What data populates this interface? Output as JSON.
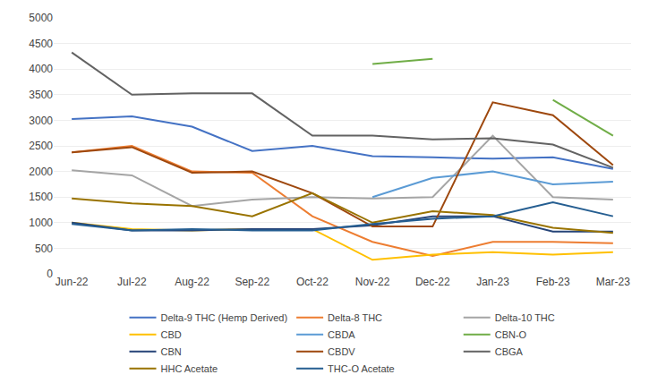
{
  "chart_data": {
    "type": "line",
    "categories": [
      "Jun-22",
      "Jul-22",
      "Aug-22",
      "Sep-22",
      "Oct-22",
      "Nov-22",
      "Dec-22",
      "Jan-23",
      "Feb-23",
      "Mar-23"
    ],
    "series": [
      {
        "name": "Delta-9 THC (Hemp Derived)",
        "color": "#4472C4",
        "values": [
          3025,
          3075,
          2875,
          2400,
          2500,
          2300,
          2275,
          2250,
          2275,
          2050
        ]
      },
      {
        "name": "Delta-8 THC",
        "color": "#ED7D31",
        "values": [
          2375,
          2500,
          2000,
          1975,
          1125,
          625,
          350,
          625,
          625,
          600
        ]
      },
      {
        "name": "Delta-10 THC",
        "color": "#A5A5A5",
        "values": [
          2025,
          1925,
          1325,
          1450,
          1500,
          1475,
          1500,
          2700,
          1500,
          1450
        ]
      },
      {
        "name": "CBD",
        "color": "#FFC000",
        "values": [
          1000,
          875,
          850,
          875,
          875,
          275,
          375,
          425,
          375,
          425
        ]
      },
      {
        "name": "CBDA",
        "color": "#5B9BD5",
        "values": [
          null,
          null,
          null,
          null,
          null,
          1500,
          1875,
          2000,
          1750,
          1800
        ]
      },
      {
        "name": "CBN-O",
        "color": "#70AD47",
        "values": [
          null,
          null,
          null,
          null,
          null,
          4100,
          4200,
          null,
          3400,
          2700
        ]
      },
      {
        "name": "CBN",
        "color": "#264478",
        "values": [
          1000,
          850,
          850,
          875,
          875,
          950,
          1125,
          1125,
          825,
          825
        ]
      },
      {
        "name": "CBDV",
        "color": "#9E480E",
        "values": [
          2375,
          2475,
          1975,
          2000,
          1575,
          925,
          925,
          3350,
          3100,
          2125
        ]
      },
      {
        "name": "CBGA",
        "color": "#636363",
        "values": [
          4325,
          3500,
          3525,
          3525,
          2700,
          2700,
          2625,
          2650,
          2525,
          2075
        ]
      },
      {
        "name": "HHC Acetate",
        "color": "#997300",
        "values": [
          1475,
          1375,
          1325,
          1125,
          1575,
          1000,
          1225,
          1150,
          900,
          800
        ]
      },
      {
        "name": "THC-O Acetate",
        "color": "#255E91",
        "values": [
          975,
          850,
          875,
          850,
          850,
          975,
          1075,
          1125,
          1400,
          1125
        ]
      }
    ],
    "ylim": [
      0,
      5000
    ],
    "yticks": [
      0,
      500,
      1000,
      1500,
      2000,
      2500,
      3000,
      3500,
      4000,
      4500,
      5000
    ],
    "grid": true,
    "legend": "bottom"
  }
}
